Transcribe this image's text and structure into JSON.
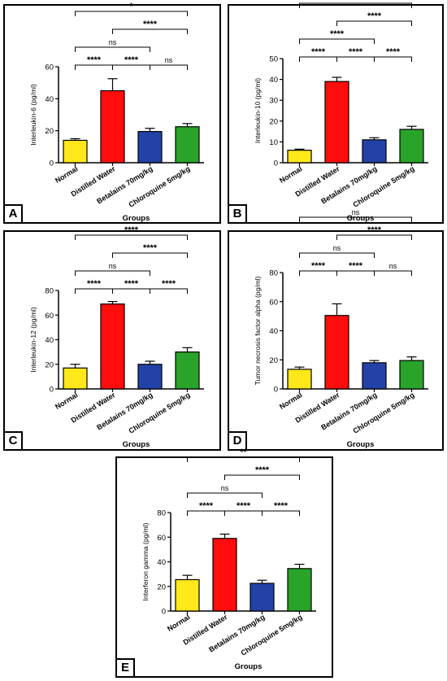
{
  "colors": {
    "normal": "#ffe81a",
    "distilled_water": "#ff0d0d",
    "betalains": "#2342a8",
    "chloroquine": "#2aa32a",
    "axis": "#000000"
  },
  "chart_data": [
    {
      "type": "bar",
      "panel": "A",
      "categories": [
        "Normal",
        "Distilled Water",
        "Betalains 70mg/kg",
        "Chloroquine 5mg/kg"
      ],
      "values": [
        14,
        45,
        19.5,
        22.5
      ],
      "errors": [
        1,
        7.5,
        2,
        2
      ],
      "ylabel": "Interleukin-6 (pg/ml)",
      "xlabel": "Groups",
      "ylim": [
        0,
        60
      ],
      "yticks": [
        0,
        20,
        40,
        60
      ],
      "brackets": [
        {
          "from": 0,
          "to": 1,
          "label": "****"
        },
        {
          "from": 1,
          "to": 2,
          "label": "****"
        },
        {
          "from": 2,
          "to": 3,
          "label": "ns"
        },
        {
          "from": 0,
          "to": 2,
          "label": "ns"
        },
        {
          "from": 1,
          "to": 3,
          "label": "****"
        },
        {
          "from": 0,
          "to": 3,
          "label": "*"
        }
      ]
    },
    {
      "type": "bar",
      "panel": "B",
      "categories": [
        "Normal",
        "Distilled Water",
        "Betalains 70mg/kg",
        "Chloroquine 5mg/kg"
      ],
      "values": [
        6,
        39,
        11,
        16
      ],
      "errors": [
        0.5,
        2,
        1,
        1.5
      ],
      "ylabel": "Interleukin-10 (pg/ml)",
      "xlabel": "Groups",
      "ylim": [
        0,
        50
      ],
      "yticks": [
        0,
        10,
        20,
        30,
        40,
        50
      ],
      "brackets": [
        {
          "from": 0,
          "to": 1,
          "label": "****"
        },
        {
          "from": 1,
          "to": 2,
          "label": "****"
        },
        {
          "from": 2,
          "to": 3,
          "label": "****"
        },
        {
          "from": 0,
          "to": 2,
          "label": "****"
        },
        {
          "from": 1,
          "to": 3,
          "label": "****"
        },
        {
          "from": 0,
          "to": 3,
          "label": "****"
        }
      ]
    },
    {
      "type": "bar",
      "panel": "C",
      "categories": [
        "Normal",
        "Distilled Water",
        "Betalains 70mg/kg",
        "Chloroquine 5mg/kg"
      ],
      "values": [
        17,
        69,
        20,
        30
      ],
      "errors": [
        3,
        2,
        2.5,
        3.5
      ],
      "ylabel": "Interleukin-12 (pg/ml)",
      "xlabel": "Groups",
      "ylim": [
        0,
        80
      ],
      "yticks": [
        0,
        20,
        40,
        60,
        80
      ],
      "brackets": [
        {
          "from": 0,
          "to": 1,
          "label": "****"
        },
        {
          "from": 1,
          "to": 2,
          "label": "****"
        },
        {
          "from": 2,
          "to": 3,
          "label": "****"
        },
        {
          "from": 0,
          "to": 2,
          "label": "ns"
        },
        {
          "from": 1,
          "to": 3,
          "label": "****"
        },
        {
          "from": 0,
          "to": 3,
          "label": "****"
        }
      ]
    },
    {
      "type": "bar",
      "panel": "D",
      "categories": [
        "Normal",
        "Distilled Water",
        "Betalains 70mg/kg",
        "Chloroquine 5mg/kg"
      ],
      "values": [
        13.5,
        50.5,
        18,
        19.5
      ],
      "errors": [
        1.5,
        8,
        1.5,
        2.5
      ],
      "ylabel": "Tumor necrosis factor alpha (pg/ml)",
      "xlabel": "Groups",
      "ylim": [
        0,
        80
      ],
      "yticks": [
        0,
        20,
        40,
        60,
        80
      ],
      "brackets": [
        {
          "from": 0,
          "to": 1,
          "label": "****"
        },
        {
          "from": 1,
          "to": 2,
          "label": "****"
        },
        {
          "from": 2,
          "to": 3,
          "label": "ns"
        },
        {
          "from": 0,
          "to": 2,
          "label": "ns"
        },
        {
          "from": 1,
          "to": 3,
          "label": "****"
        },
        {
          "from": 0,
          "to": 3,
          "label": "ns"
        }
      ]
    },
    {
      "type": "bar",
      "panel": "E",
      "categories": [
        "Normal",
        "Distilled Water",
        "Betalains 70mg/kg",
        "Chloroquine 5mg/kg"
      ],
      "values": [
        25.5,
        59,
        22.5,
        34.5
      ],
      "errors": [
        3.5,
        3.5,
        2.5,
        3.5
      ],
      "ylabel": "Interferon gamma (pg/ml)",
      "xlabel": "Groups",
      "ylim": [
        0,
        80
      ],
      "yticks": [
        0,
        20,
        40,
        60,
        80
      ],
      "brackets": [
        {
          "from": 0,
          "to": 1,
          "label": "****"
        },
        {
          "from": 1,
          "to": 2,
          "label": "****"
        },
        {
          "from": 2,
          "to": 3,
          "label": "****"
        },
        {
          "from": 0,
          "to": 2,
          "label": "ns"
        },
        {
          "from": 1,
          "to": 3,
          "label": "****"
        },
        {
          "from": 0,
          "to": 3,
          "label": "**"
        }
      ]
    }
  ]
}
